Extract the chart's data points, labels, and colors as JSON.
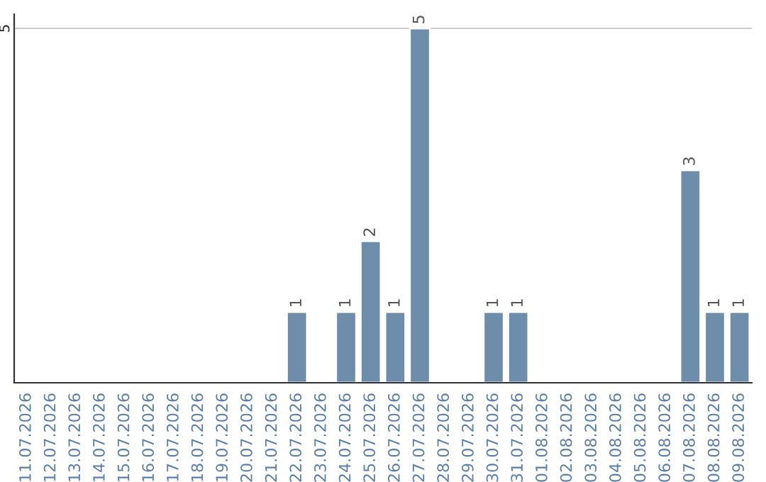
{
  "chart_data": {
    "type": "bar",
    "categories": [
      "11.07.2026",
      "12.07.2026",
      "13.07.2026",
      "14.07.2026",
      "15.07.2026",
      "16.07.2026",
      "17.07.2026",
      "18.07.2026",
      "19.07.2026",
      "20.07.2026",
      "21.07.2026",
      "22.07.2026",
      "23.07.2026",
      "24.07.2026",
      "25.07.2026",
      "26.07.2026",
      "27.07.2026",
      "28.07.2026",
      "29.07.2026",
      "30.07.2026",
      "31.07.2026",
      "01.08.2026",
      "02.08.2026",
      "03.08.2026",
      "04.08.2026",
      "05.08.2026",
      "06.08.2026",
      "07.08.2026",
      "08.08.2026",
      "09.08.2026"
    ],
    "values": [
      null,
      null,
      null,
      null,
      null,
      null,
      null,
      null,
      null,
      null,
      null,
      1,
      null,
      1,
      2,
      1,
      5,
      null,
      null,
      1,
      1,
      null,
      null,
      null,
      null,
      null,
      null,
      3,
      1,
      1
    ],
    "value_labels": [
      null,
      null,
      null,
      null,
      null,
      null,
      null,
      null,
      null,
      null,
      null,
      "1",
      null,
      "1",
      "2",
      "1",
      "5",
      null,
      null,
      "1",
      "1",
      null,
      null,
      null,
      null,
      null,
      null,
      "3",
      "1",
      "1"
    ],
    "color": "#6d8dab",
    "ylim": [
      0,
      5.2
    ],
    "yticks": [
      5
    ],
    "grid": "y"
  }
}
